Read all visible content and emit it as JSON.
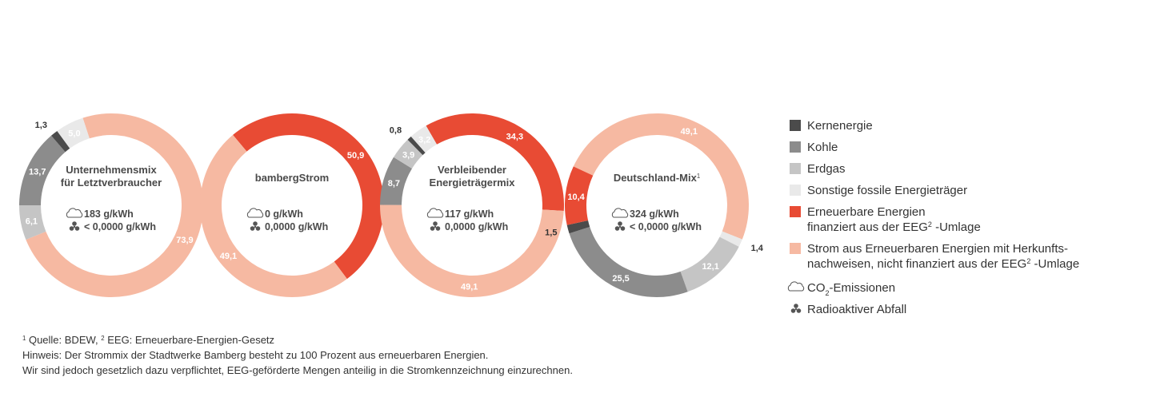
{
  "chart_data": [
    {
      "type": "donut",
      "title": [
        "Unternehmensmix",
        "für Letztverbraucher"
      ],
      "co2": "183 g/kWh",
      "waste": "< 0,0000 g/kWh",
      "values": [
        1.3,
        13.7,
        6.1,
        5.0,
        null,
        73.9
      ],
      "value_labels": [
        "1,3",
        "13,7",
        "6,1",
        "5,0",
        null,
        "73,9"
      ]
    },
    {
      "type": "donut",
      "title": [
        "bambergStrom"
      ],
      "co2": "0 g/kWh",
      "waste": "0,0000 g/kWh",
      "values": [
        null,
        null,
        null,
        null,
        50.9,
        49.1
      ],
      "value_labels": [
        null,
        null,
        null,
        null,
        "50,9",
        "49,1"
      ]
    },
    {
      "type": "donut",
      "title": [
        "Verbleibender",
        "Energieträgermix"
      ],
      "co2": "117 g/kWh",
      "waste": "0,0000 g/kWh",
      "values": [
        0.8,
        8.7,
        3.9,
        3.2,
        34.3,
        49.1
      ],
      "value_labels": [
        "0,8",
        "8,7",
        "3,9",
        "3,2",
        "34,3",
        "49,1"
      ]
    },
    {
      "type": "donut",
      "title": [
        "Deutschland-Mix"
      ],
      "title_sup": "1",
      "co2": "324 g/kWh",
      "waste": "< 0,0000 g/kWh",
      "values": [
        1.5,
        25.5,
        12.1,
        1.4,
        10.4,
        49.1
      ],
      "value_labels": [
        "1,5",
        "25,5",
        "12,1",
        "1,4",
        "10,4",
        "49,1"
      ]
    }
  ],
  "legend": [
    {
      "color": "#4b4b4b",
      "lines": [
        [
          "Kernenergie"
        ]
      ]
    },
    {
      "color": "#8c8c8c",
      "lines": [
        [
          "Kohle"
        ]
      ]
    },
    {
      "color": "#c5c5c5",
      "lines": [
        [
          "Erdgas"
        ]
      ]
    },
    {
      "color": "#e9e9e9",
      "lines": [
        [
          "Sonstige fossile Energieträger"
        ]
      ]
    },
    {
      "color": "#e84b34",
      "lines": [
        [
          "Erneuerbare Energien"
        ],
        [
          "finanziert aus der EEG",
          {
            "sup": "2"
          },
          " -Umlage"
        ]
      ]
    },
    {
      "color": "#f6b9a2",
      "lines": [
        [
          "Strom aus Erneuerbaren Energien mit Herkunfts-"
        ],
        [
          "nachweisen, nicht finanziert aus der EEG",
          {
            "sup": "2"
          },
          " -Umlage"
        ]
      ]
    }
  ],
  "legend_icons": [
    {
      "icon": "cloud",
      "lines": [
        [
          "CO",
          {
            "sub": "2"
          },
          "-Emissionen"
        ]
      ]
    },
    {
      "icon": "radiation",
      "lines": [
        [
          "Radioaktiver Abfall"
        ]
      ]
    }
  ],
  "footnotes": [
    [
      {
        "sup": "1"
      },
      " Quelle: BDEW, ",
      {
        "sup": "2"
      },
      " EEG: Erneuerbare-Energien-Gesetz"
    ],
    [
      "Hinweis: Der Strommix der Stadtwerke Bamberg besteht zu 100 Prozent aus erneuerbaren Energien."
    ],
    [
      "Wir sind jedoch gesetzlich dazu verpflichtet, EEG-geförderte Mengen anteilig in die Stromkennzeichnung einzurechnen."
    ]
  ]
}
